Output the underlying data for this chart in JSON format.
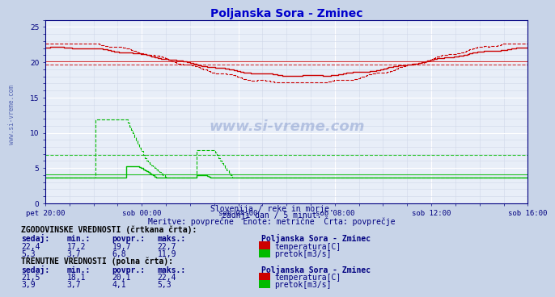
{
  "title": "Poljanska Sora - Zminec",
  "title_color": "#0000cc",
  "bg_color": "#c8d4e8",
  "plot_bg_color": "#e8eef8",
  "grid_color_major": "#ffffff",
  "grid_color_minor": "#d0d8e8",
  "xlabel_color": "#000080",
  "text_color": "#000080",
  "subtitle_lines": [
    "Slovenija / reke in morje.",
    "zadnji dan / 5 minut.",
    "Meritve: povprečne  Enote: metrične  Črta: povprečje"
  ],
  "xtick_labels": [
    "pet 20:00",
    "sob 00:00",
    "sob 04:00",
    "sob 08:00",
    "sob 12:00",
    "sob 16:00"
  ],
  "ytick_labels": [
    0,
    5,
    10,
    15,
    20,
    25
  ],
  "ylim": [
    0,
    26
  ],
  "xlim": [
    0,
    287
  ],
  "temp_color": "#cc0000",
  "flow_color": "#00bb00",
  "hline_temp_avg": 20.1,
  "hline_temp_hist": 19.7,
  "hline_flow_avg": 4.1,
  "hline_flow_hist": 6.8,
  "legend_section1": "ZGODOVINSKE VREDNOSTI (črtkana črta):",
  "legend_section2": "TRENUTNE VREDNOSTI (polna črta):",
  "legend_headers": [
    "sedaj:",
    "min.:",
    "povpr.:",
    "maks.:"
  ],
  "legend_station": "Poljanska Sora - Zminec",
  "hist_temp_vals": [
    "22,4",
    "17,2",
    "19,7",
    "22,7"
  ],
  "hist_flow_vals": [
    "5,3",
    "3,7",
    "6,8",
    "11,9"
  ],
  "curr_temp_vals": [
    "21,5",
    "18,1",
    "20,1",
    "22,4"
  ],
  "curr_flow_vals": [
    "3,9",
    "3,7",
    "4,1",
    "5,3"
  ],
  "temp_label": "temperatura[C]",
  "flow_label": "pretok[m3/s]",
  "temp_square_color": "#cc0000",
  "flow_square_color": "#00bb00"
}
